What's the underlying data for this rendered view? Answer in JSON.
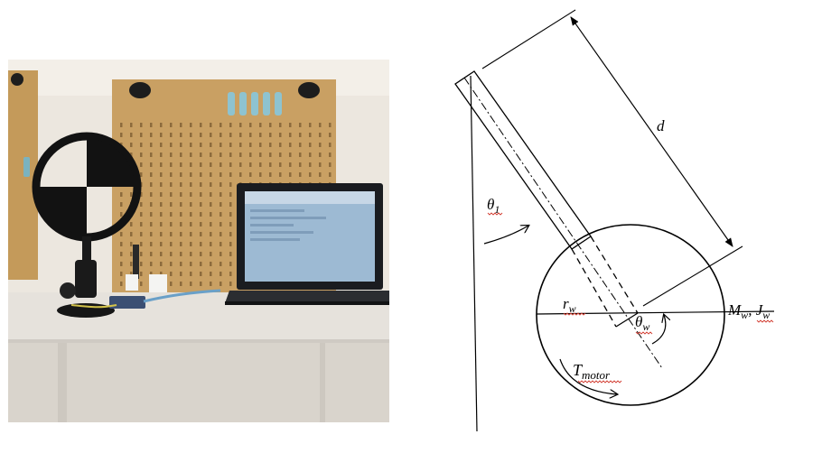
{
  "photo": {
    "subject": "reaction-wheel-pendulum-setup",
    "items": [
      "pegboard",
      "reaction-wheel",
      "pendulum-mount",
      "laptop",
      "electronics-board",
      "table"
    ],
    "colors": {
      "pegboard": "#c9a063",
      "wall": "#ece7df",
      "table": "#e6e2dc",
      "wheel": "#121212"
    }
  },
  "diagram": {
    "labels": {
      "d": "d",
      "theta1_base": "θ",
      "theta1_sub": "1",
      "rw_base": "r",
      "rw_sub": "w",
      "thetaw_base": "θ",
      "thetaw_sub": "w",
      "Mw_base": "M",
      "Mw_sub": "w",
      "sep": ", ",
      "Jw_base": "J",
      "Jw_sub": "w",
      "tmotor_base": "T",
      "tmotor_sub": "motor"
    },
    "colors": {
      "line": "#000000",
      "spellcheck_underline": "#d23a2e"
    }
  }
}
